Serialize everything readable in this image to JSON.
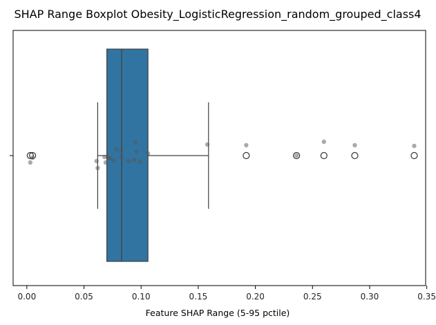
{
  "chart_data": {
    "type": "boxplot",
    "title": "SHAP Range Boxplot Obesity_LogisticRegression_random_grouped_class4",
    "xlabel": "Feature SHAP Range (5-95 pctile)",
    "ylabel": "",
    "xlim": [
      -0.012,
      0.349
    ],
    "x_ticks": [
      0.0,
      0.05,
      0.1,
      0.15,
      0.2,
      0.25,
      0.3,
      0.35
    ],
    "x_tick_labels": [
      "0.00",
      "0.05",
      "0.10",
      "0.15",
      "0.20",
      "0.25",
      "0.30",
      "0.35"
    ],
    "grid": false,
    "box": {
      "whisker_low": 0.062,
      "q1": 0.07,
      "median": 0.083,
      "q3": 0.106,
      "whisker_high": 0.159,
      "color": "#3274a1"
    },
    "outliers": [
      0.003,
      0.005,
      0.192,
      0.236,
      0.26,
      0.287,
      0.339
    ],
    "points": [
      {
        "x": 0.003,
        "y": -0.1
      },
      {
        "x": 0.005,
        "y": -0.03
      },
      {
        "x": 0.061,
        "y": -0.08
      },
      {
        "x": 0.062,
        "y": -0.18
      },
      {
        "x": 0.068,
        "y": -0.02
      },
      {
        "x": 0.069,
        "y": -0.1
      },
      {
        "x": 0.071,
        "y": -0.03
      },
      {
        "x": 0.073,
        "y": -0.04
      },
      {
        "x": 0.076,
        "y": -0.07
      },
      {
        "x": 0.078,
        "y": 0.09
      },
      {
        "x": 0.082,
        "y": 0.08
      },
      {
        "x": 0.083,
        "y": -0.02
      },
      {
        "x": 0.089,
        "y": -0.08
      },
      {
        "x": 0.094,
        "y": -0.06
      },
      {
        "x": 0.095,
        "y": 0.19
      },
      {
        "x": 0.096,
        "y": 0.06
      },
      {
        "x": 0.099,
        "y": -0.09
      },
      {
        "x": 0.106,
        "y": 0.03
      },
      {
        "x": 0.158,
        "y": 0.16
      },
      {
        "x": 0.192,
        "y": 0.15
      },
      {
        "x": 0.236,
        "y": 0.0
      },
      {
        "x": 0.26,
        "y": 0.2
      },
      {
        "x": 0.287,
        "y": 0.15
      },
      {
        "x": 0.339,
        "y": 0.14
      }
    ],
    "point_color": "#555555",
    "outlier_edge_color": "#333333"
  }
}
